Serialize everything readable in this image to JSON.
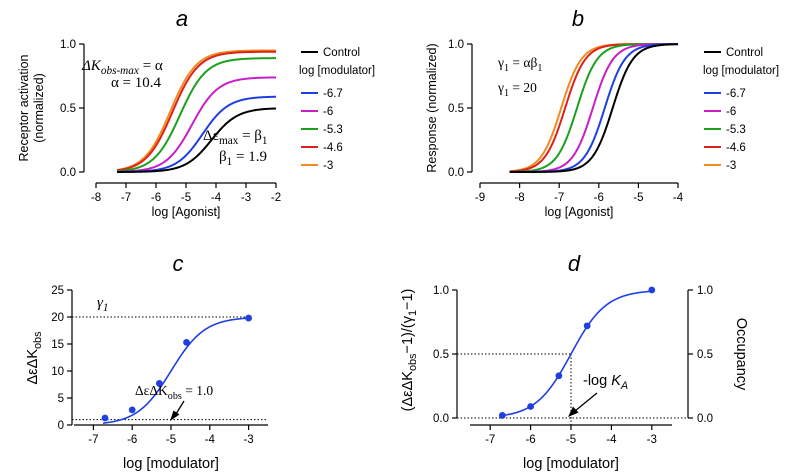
{
  "chart_data": [
    {
      "panel": "a",
      "type": "line",
      "xlabel": "log [Agonist]",
      "ylabel": "Receptor activation (normalized)",
      "ylabel_lines": [
        "Receptor activation",
        "(normalized)"
      ],
      "xlim": [
        -8,
        -2
      ],
      "ylim": [
        0,
        1.0
      ],
      "xticks": [
        -8,
        -7,
        -6,
        -5,
        -4,
        -3,
        -2
      ],
      "yticks": [
        0.0,
        0.5,
        1.0
      ],
      "ytick_labels": [
        "0.0",
        "0.5",
        "1.0"
      ],
      "legend_title": "log [modulator]",
      "legend_control": "Control",
      "series": [
        {
          "name": "Control",
          "color": "#000000",
          "top": 0.5,
          "logEC50": -4.15
        },
        {
          "name": "-6.7",
          "color": "#1f3fe0",
          "top": 0.59,
          "logEC50": -4.45
        },
        {
          "name": "-6",
          "color": "#c81ec8",
          "top": 0.74,
          "logEC50": -4.8
        },
        {
          "name": "-5.3",
          "color": "#1aa01a",
          "top": 0.89,
          "logEC50": -5.2
        },
        {
          "name": "-4.6",
          "color": "#e0201a",
          "top": 0.94,
          "logEC50": -5.45
        },
        {
          "name": "-3",
          "color": "#f08c1e",
          "top": 0.95,
          "logEC50": -5.52
        }
      ],
      "annotations": {
        "k_label": "ΔK",
        "k_sub": "obs-max",
        "k_eq": " = α",
        "alpha_val": "α = 10.4",
        "e_label": "Δε",
        "e_sub": "max",
        "e_eq": " = β",
        "e_eq_sub": "1",
        "beta_label": "β",
        "beta_sub": "1",
        "beta_val": " = 1.9"
      }
    },
    {
      "panel": "b",
      "type": "line",
      "xlabel": "log [Agonist]",
      "ylabel": "Response (normalized)",
      "xlim": [
        -9,
        -4
      ],
      "ylim": [
        0,
        1.0
      ],
      "xticks": [
        -9,
        -8,
        -7,
        -6,
        -5,
        -4
      ],
      "yticks": [
        0.0,
        0.5,
        1.0
      ],
      "ytick_labels": [
        "0.0",
        "0.5",
        "1.0"
      ],
      "legend_title": "log [modulator]",
      "legend_control": "Control",
      "series": [
        {
          "name": "Control",
          "color": "#000000",
          "top": 1.0,
          "logEC50": -5.65
        },
        {
          "name": "-6.7",
          "color": "#1f3fe0",
          "top": 1.0,
          "logEC50": -5.85
        },
        {
          "name": "-6",
          "color": "#c81ec8",
          "top": 1.0,
          "logEC50": -6.15
        },
        {
          "name": "-5.3",
          "color": "#1aa01a",
          "top": 1.0,
          "logEC50": -6.55
        },
        {
          "name": "-4.6",
          "color": "#e0201a",
          "top": 1.0,
          "logEC50": -6.85
        },
        {
          "name": "-3",
          "color": "#f08c1e",
          "top": 1.0,
          "logEC50": -6.95
        }
      ],
      "annotations": {
        "g1": "γ",
        "g1_sub": "1",
        "g1_eq": " = αβ",
        "g1_eq_sub": "1",
        "g2": "γ",
        "g2_sub": "1",
        "g2_eq": " = 20"
      }
    },
    {
      "panel": "c",
      "type": "scatter",
      "xlabel": "log [modulator]",
      "ylabel": "ΔεΔK",
      "ylabel_sub": "obs",
      "xlim": [
        -7.5,
        -2.5
      ],
      "ylim": [
        0,
        25
      ],
      "xticks": [
        -7,
        -6,
        -5,
        -4,
        -3
      ],
      "yticks": [
        0,
        5,
        10,
        15,
        20,
        25
      ],
      "points": [
        {
          "x": -6.7,
          "y": 1.3
        },
        {
          "x": -6.0,
          "y": 2.8
        },
        {
          "x": -5.3,
          "y": 7.7
        },
        {
          "x": -4.6,
          "y": 15.3
        },
        {
          "x": -3.0,
          "y": 19.8
        }
      ],
      "color": "#1f3fe0",
      "annotations": {
        "gamma": "γ",
        "gamma_sub": "1",
        "eq_pre": "ΔεΔK",
        "eq_sub": "obs",
        "eq_post": " = 1.0"
      },
      "ref_lines": {
        "gamma_y": 20,
        "one_y": 1.0
      }
    },
    {
      "panel": "d",
      "type": "scatter",
      "xlabel": "log [modulator]",
      "ylabel": "(ΔεΔK",
      "ylabel_sub": "obs",
      "ylabel_post": "−1)/(γ",
      "ylabel_sub2": "1",
      "ylabel_end": "−1)",
      "ylabel_right": "Occupancy",
      "xlim": [
        -7.5,
        -2.5
      ],
      "ylim": [
        0,
        1.0
      ],
      "xticks": [
        -7,
        -6,
        -5,
        -4,
        -3
      ],
      "yticks": [
        0.0,
        0.5,
        1.0
      ],
      "ytick_labels": [
        "0.0",
        "0.5",
        "1.0"
      ],
      "points": [
        {
          "x": -6.7,
          "y": 0.02
        },
        {
          "x": -6.0,
          "y": 0.09
        },
        {
          "x": -5.3,
          "y": 0.33
        },
        {
          "x": -4.6,
          "y": 0.72
        },
        {
          "x": -3.0,
          "y": 1.0
        }
      ],
      "color": "#1f3fe0",
      "logKA": -5.0,
      "annotations": {
        "ka_pre": "-log ",
        "ka_k": "K",
        "ka_sub": "A"
      }
    }
  ]
}
